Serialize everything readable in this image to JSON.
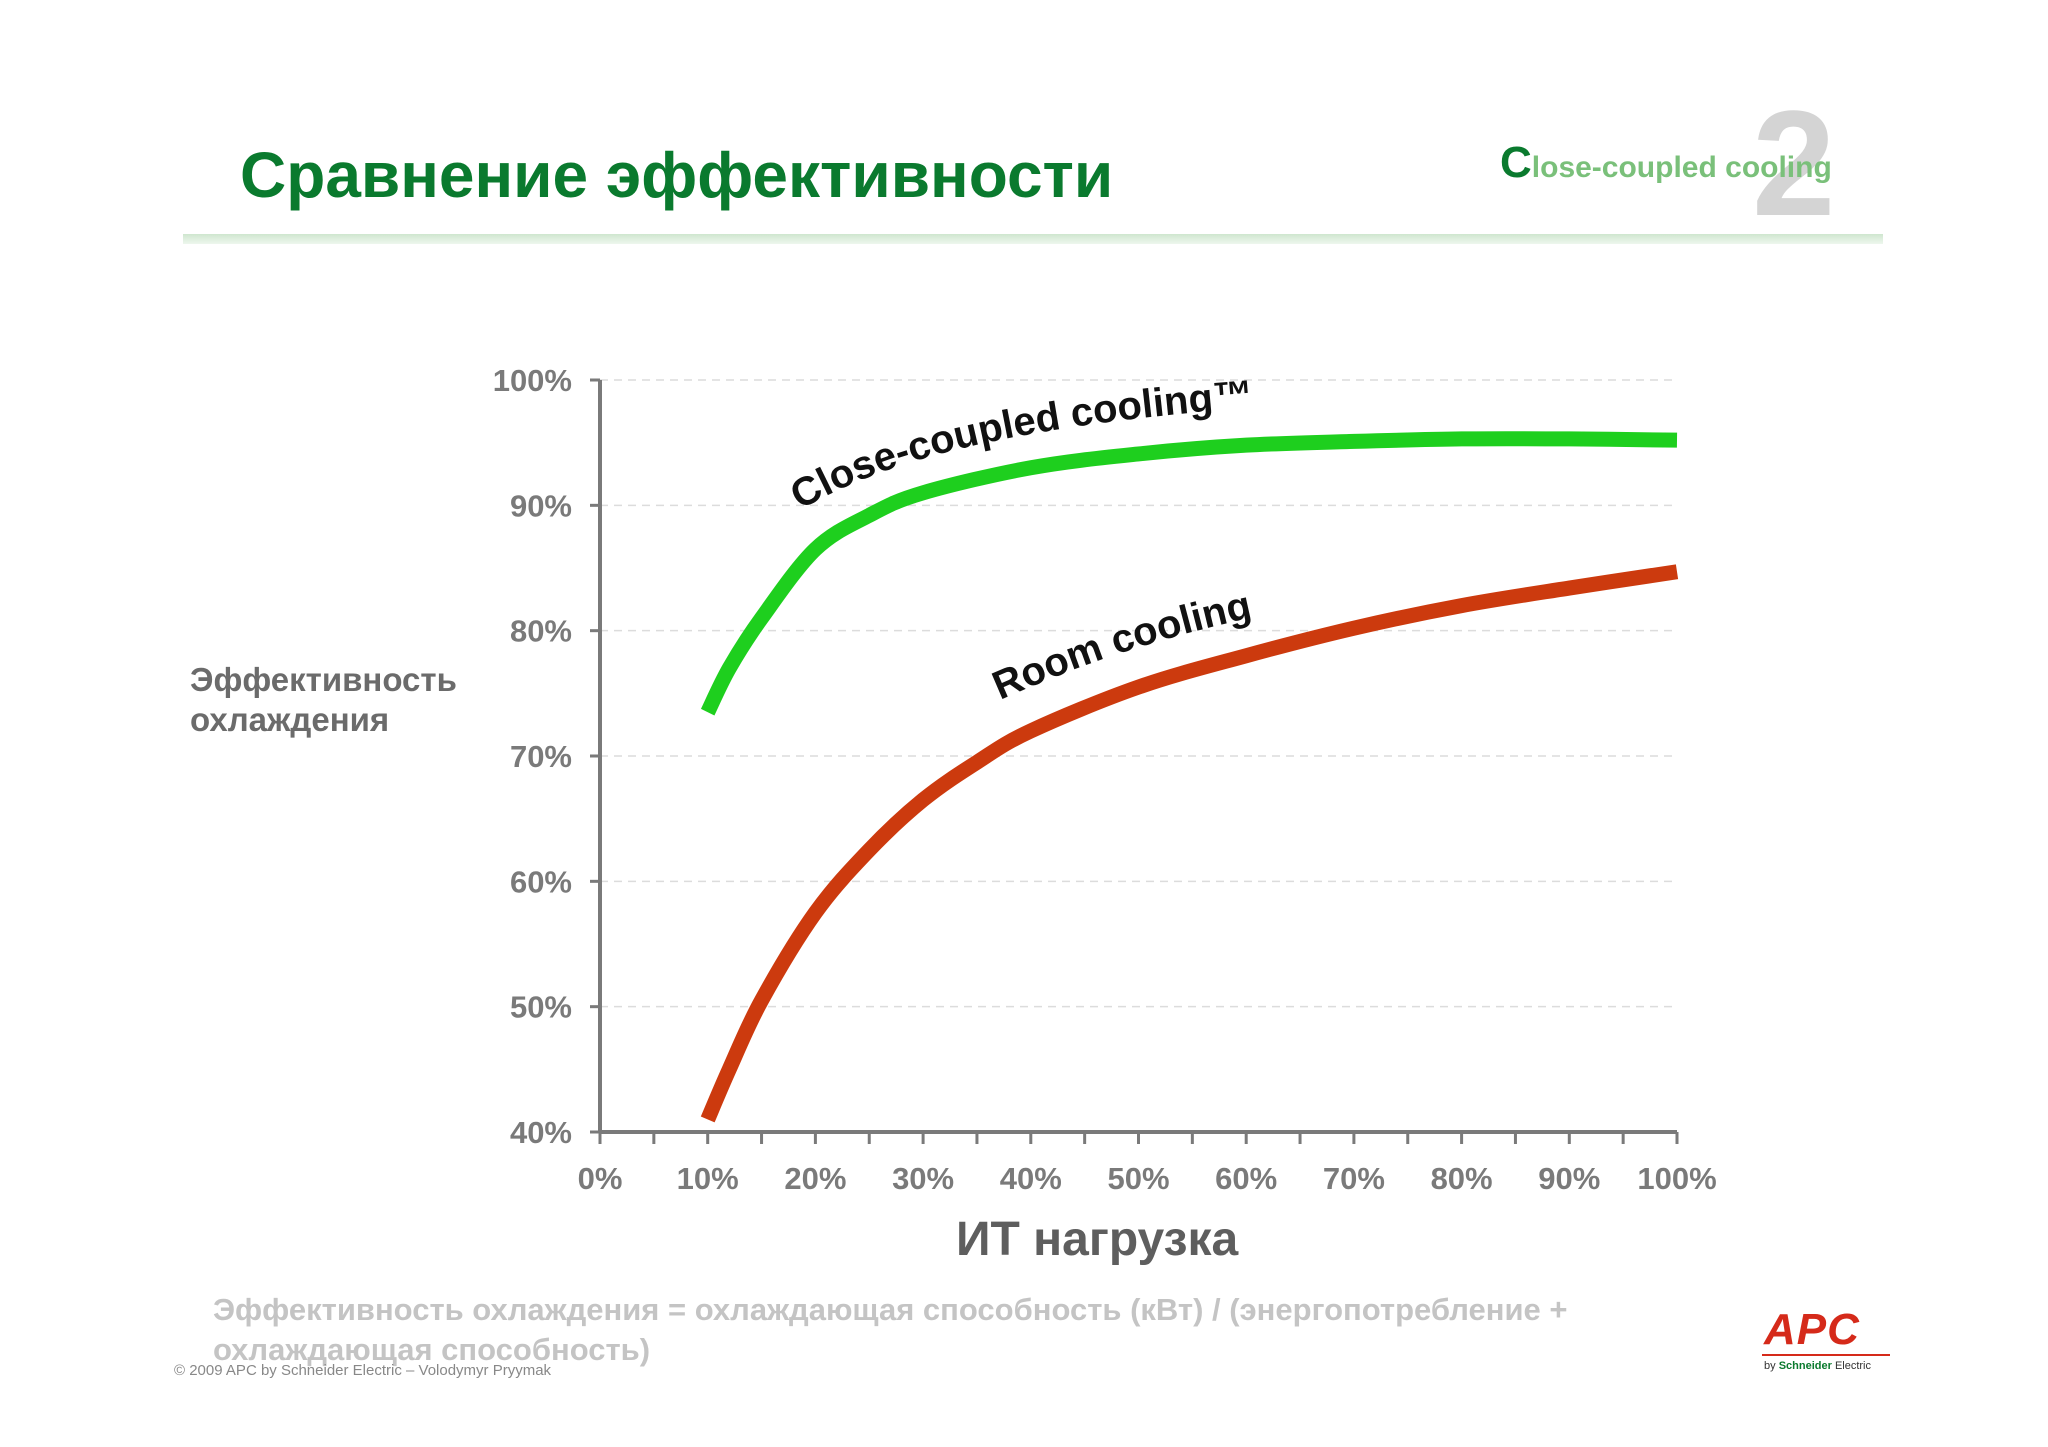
{
  "slide": {
    "title": "Сравнение эффективности",
    "brand": {
      "initial": "C",
      "text": "lose-coupled cooling",
      "digit": "2"
    },
    "footnote": "Эффективность охлаждения = охлаждающая способность (кВт) / (энергопотребление + охлаждающая способность)",
    "copyright": "© 2009 APC by Schneider Electric – Volodymyr Pryymak",
    "logo": {
      "name": "APC",
      "by": "by",
      "company": "Schneider",
      "company2": "Electric"
    }
  },
  "chart_data": {
    "type": "line",
    "title": "",
    "xlabel": "ИТ нагрузка",
    "ylabel": "Эффективность охлаждения",
    "xlim": [
      0,
      100
    ],
    "ylim": [
      40,
      100
    ],
    "xticks": [
      "0%",
      "10%",
      "20%",
      "30%",
      "40%",
      "50%",
      "60%",
      "70%",
      "80%",
      "90%",
      "100%"
    ],
    "yticks": [
      "40%",
      "50%",
      "60%",
      "70%",
      "80%",
      "90%",
      "100%"
    ],
    "grid": "horizontal-dashed",
    "series": [
      {
        "name": "Close-coupled cooling™",
        "color": "#1ecf1e",
        "x": [
          10,
          12,
          15,
          20,
          25,
          30,
          40,
          50,
          60,
          70,
          80,
          90,
          100
        ],
        "y": [
          73.5,
          77,
          81,
          86.5,
          89.2,
          91,
          93,
          94.1,
          94.8,
          95.1,
          95.3,
          95.3,
          95.2
        ]
      },
      {
        "name": "Room cooling",
        "color": "#cc3a0e",
        "x": [
          10,
          12,
          15,
          20,
          25,
          30,
          35,
          40,
          50,
          60,
          70,
          80,
          90,
          100
        ],
        "y": [
          41,
          45,
          50.5,
          57.5,
          62.5,
          66.5,
          69.5,
          72,
          75.5,
          78,
          80.2,
          82,
          83.4,
          84.7
        ]
      }
    ]
  }
}
